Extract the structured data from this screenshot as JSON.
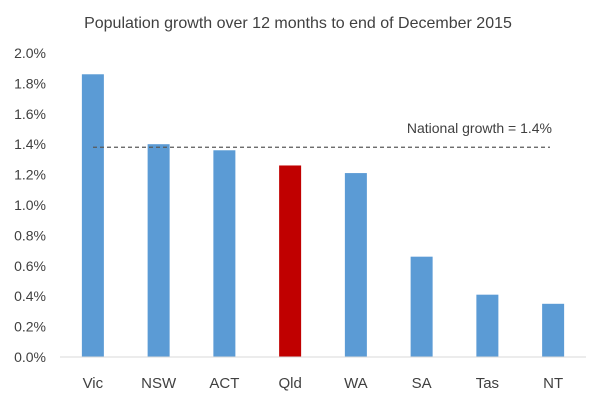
{
  "chart_data": {
    "type": "bar",
    "title": "Population growth over 12 months to end of December 2015",
    "xlabel": "",
    "ylabel": "",
    "categories": [
      "Vic",
      "NSW",
      "ACT",
      "Qld",
      "WA",
      "SA",
      "Tas",
      "NT"
    ],
    "values": [
      1.86,
      1.4,
      1.36,
      1.26,
      1.21,
      0.66,
      0.41,
      0.35
    ],
    "ylim": [
      0,
      2.0
    ],
    "yticks": [
      "0.0%",
      "0.2%",
      "0.4%",
      "0.6%",
      "0.8%",
      "1.0%",
      "1.2%",
      "1.4%",
      "1.6%",
      "1.8%",
      "2.0%"
    ],
    "ytick_values": [
      0,
      0.2,
      0.4,
      0.6,
      0.8,
      1.0,
      1.2,
      1.4,
      1.6,
      1.8,
      2.0
    ],
    "grid": false,
    "legend": "none",
    "bar_color": "#5B9BD5",
    "highlight_category": "Qld",
    "highlight_color": "#C00000",
    "reference_line": {
      "value": 1.38,
      "label": "National growth = 1.4%",
      "style": "dashed",
      "color": "#595959"
    }
  }
}
